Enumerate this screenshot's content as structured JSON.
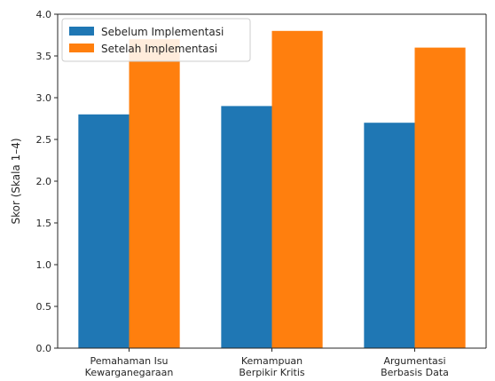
{
  "chart_data": {
    "type": "bar",
    "title": "",
    "xlabel": "",
    "ylabel": "Skor (Skala 1–4)",
    "ylim": [
      0,
      4.0
    ],
    "yticks": [
      "0.0",
      "0.5",
      "1.0",
      "1.5",
      "2.0",
      "2.5",
      "3.0",
      "3.5",
      "4.0"
    ],
    "categories": [
      [
        "Pemahaman Isu",
        "Kewarganegaraan"
      ],
      [
        "Kemampuan",
        "Berpikir Kritis"
      ],
      [
        "Argumentasi",
        "Berbasis Data"
      ]
    ],
    "series": [
      {
        "name": "Sebelum Implementasi",
        "color": "#1f77b4",
        "values": [
          2.8,
          2.9,
          2.7
        ]
      },
      {
        "name": "Setelah Implementasi",
        "color": "#ff7f0e",
        "values": [
          3.7,
          3.8,
          3.6
        ]
      }
    ],
    "legend_position": "top-left",
    "grid": false
  }
}
